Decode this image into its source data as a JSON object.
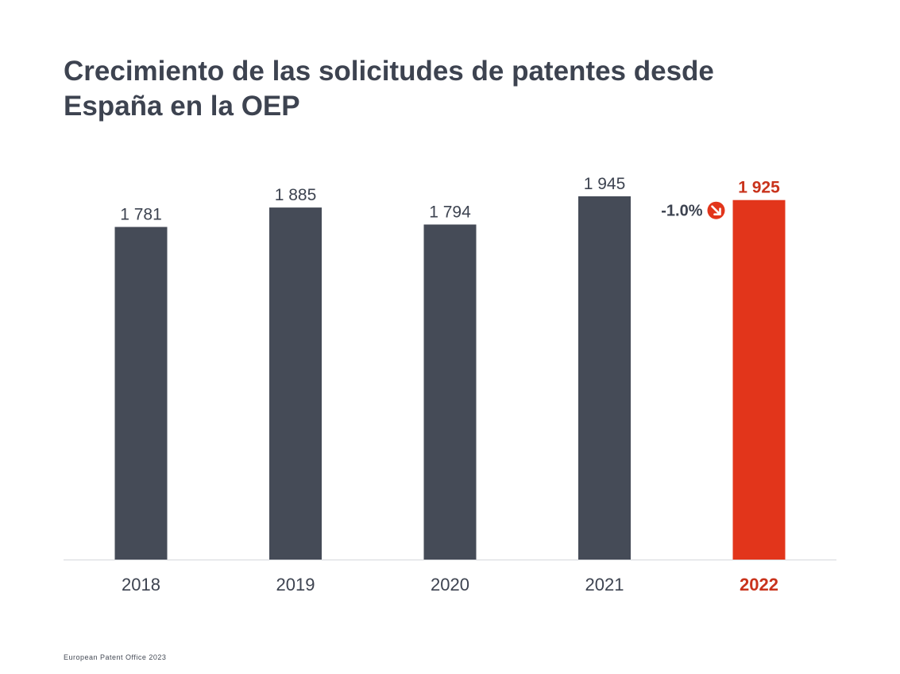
{
  "chart_data": {
    "type": "bar",
    "title_lines": [
      "Crecimiento de las solicitudes de patentes desde",
      "España en la OEP"
    ],
    "categories": [
      "2018",
      "2019",
      "2020",
      "2021",
      "2022"
    ],
    "values": [
      1781,
      1885,
      1794,
      1945,
      1925
    ],
    "value_labels": [
      "1 781",
      "1 885",
      "1 794",
      "1 945",
      "1 925"
    ],
    "highlight_index": 4,
    "ylim": [
      0,
      2000
    ],
    "annotation": {
      "text": "-1.0%",
      "icon": "arrow-down-right-circle-icon",
      "category": "2022"
    },
    "colors": {
      "bar": "#454b57",
      "highlight": "#e2351b",
      "highlight_text": "#c9331c",
      "text": "#3d4350",
      "axis": "#d6d8dc"
    }
  },
  "footer": {
    "source": "European Patent Office 2023"
  }
}
